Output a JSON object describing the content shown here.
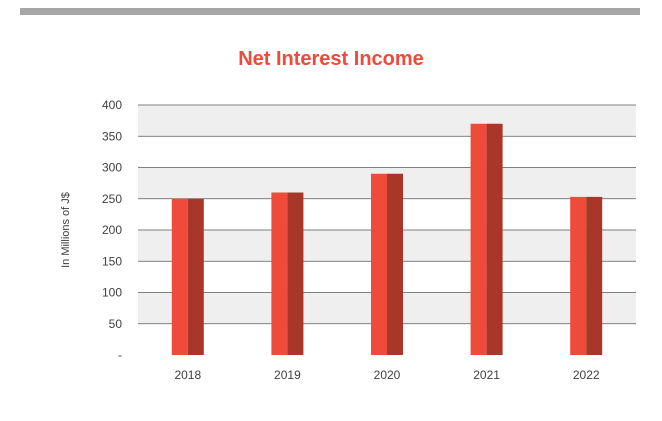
{
  "chart_data": {
    "type": "bar",
    "title": "Net Interest Income",
    "xlabel": "",
    "ylabel": "In Millions of J$",
    "categories": [
      "2018",
      "2019",
      "2020",
      "2021",
      "2022"
    ],
    "values": [
      250,
      260,
      290,
      370,
      253
    ],
    "ylim": [
      0,
      400
    ],
    "yticks": [
      0,
      50,
      100,
      150,
      200,
      250,
      300,
      350,
      400
    ],
    "ytick_labels": [
      "-",
      "50",
      "100",
      "150",
      "200",
      "250",
      "300",
      "350",
      "400"
    ],
    "grid": true,
    "legend": "none",
    "colors": {
      "bar_light": "#ee4b3b",
      "bar_dark": "#a8372a",
      "band": "#efefef",
      "gridline": "#595959",
      "title": "#ee4b3b",
      "top_rule": "#a6a6a6"
    }
  }
}
